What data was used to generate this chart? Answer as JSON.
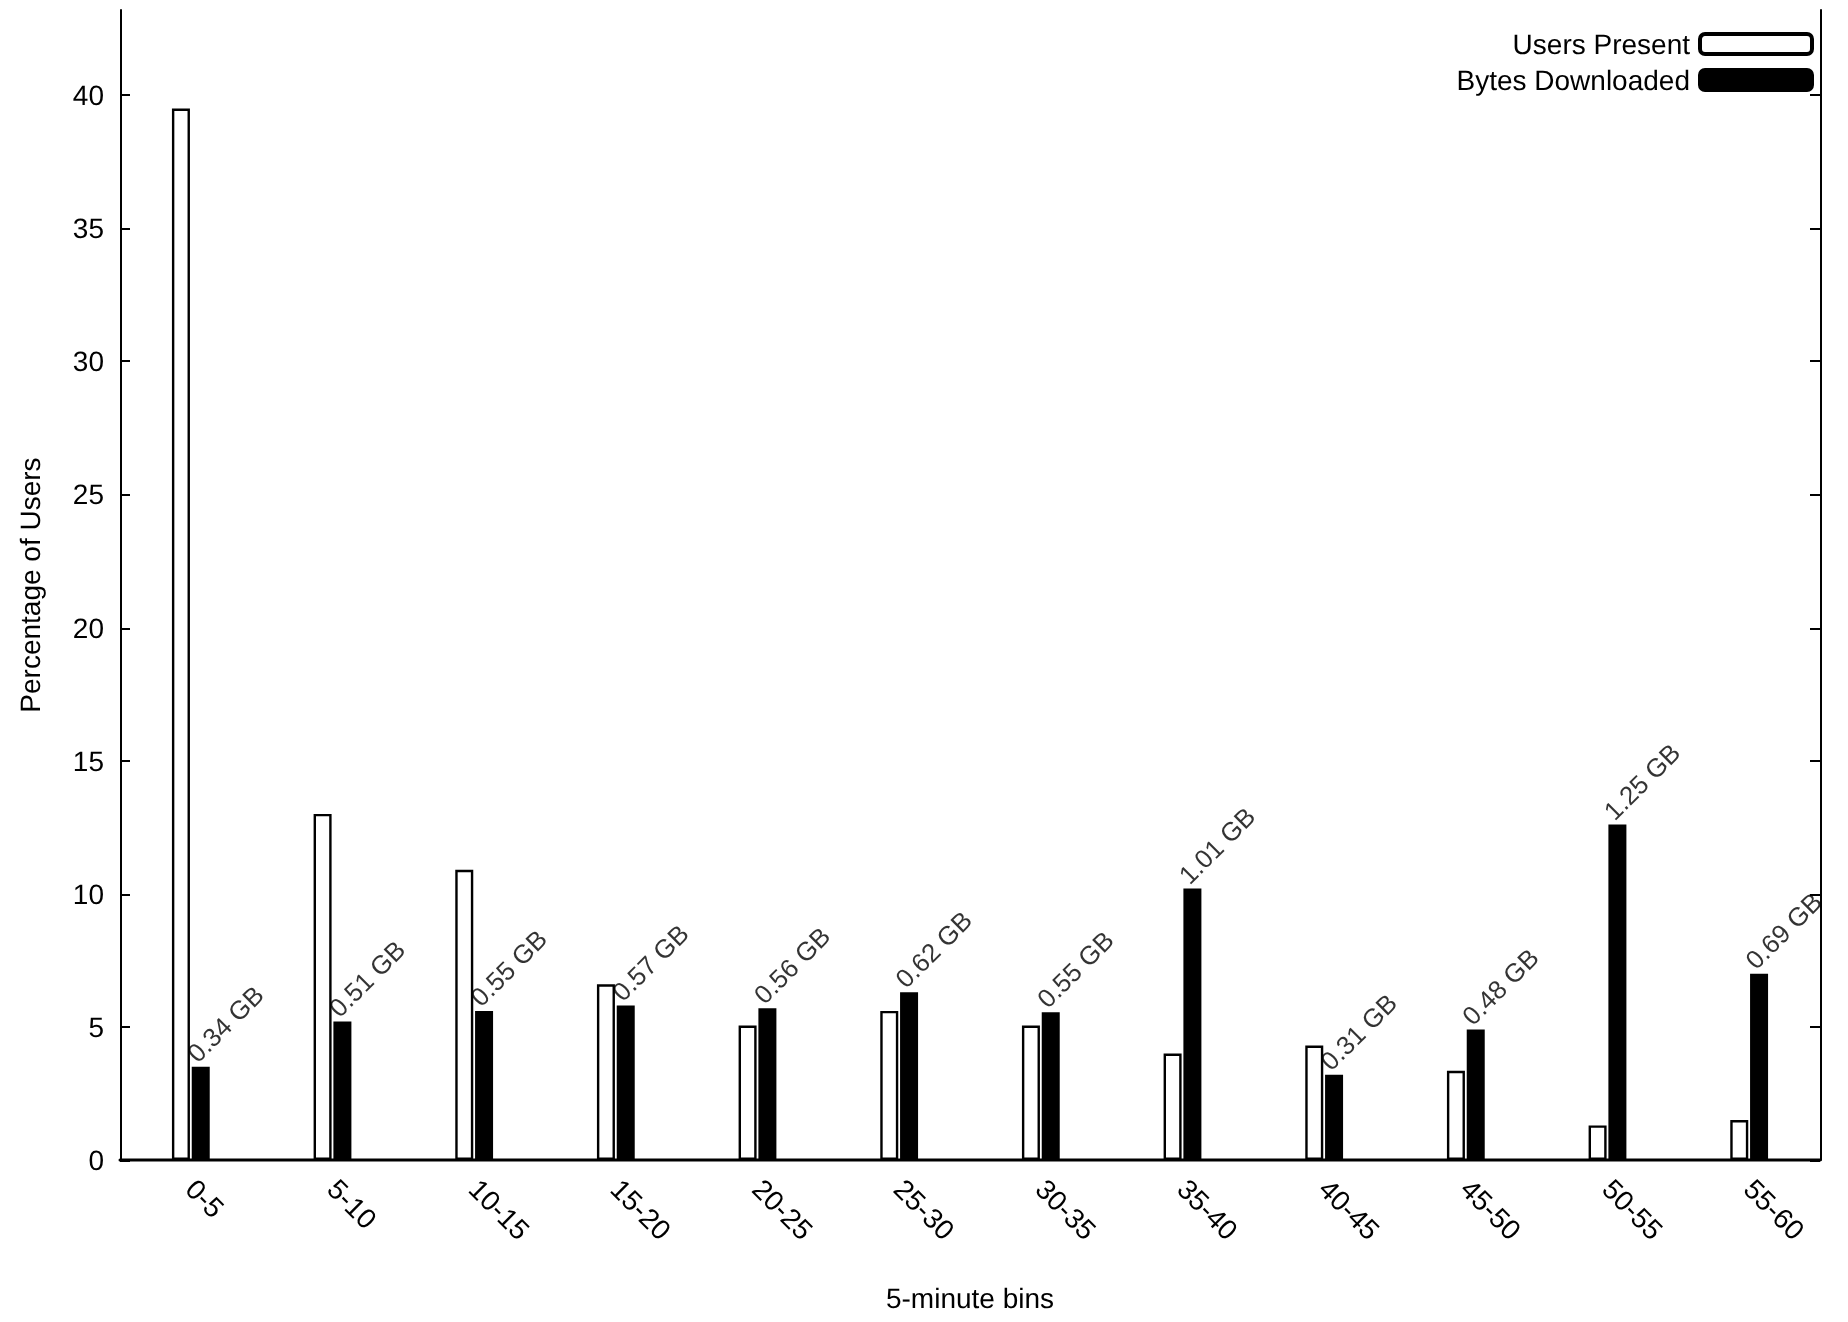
{
  "chart_data": {
    "type": "bar",
    "xlabel": "5-minute bins",
    "ylabel": "Percentage of Users",
    "categories": [
      "0-5",
      "5-10",
      "10-15",
      "15-20",
      "20-25",
      "25-30",
      "30-35",
      "35-40",
      "40-45",
      "45-50",
      "50-55",
      "55-60"
    ],
    "series": [
      {
        "name": "Users Present",
        "color": "#ffffff",
        "values": [
          39.5,
          13,
          10.9,
          6.6,
          5.05,
          5.6,
          5.05,
          4.0,
          4.3,
          3.35,
          1.3,
          1.5
        ]
      },
      {
        "name": "Bytes Downloaded",
        "color": "#000000",
        "values": [
          3.5,
          5.2,
          5.6,
          5.8,
          5.7,
          6.3,
          5.55,
          10.2,
          3.2,
          4.9,
          12.6,
          7.0
        ]
      }
    ],
    "annotations": [
      {
        "text": "0.34 GB",
        "x": "0-5",
        "y": 3.5
      },
      {
        "text": "0.51 GB",
        "x": "5-10",
        "y": 5.2
      },
      {
        "text": "0.55 GB",
        "x": "10-15",
        "y": 5.6
      },
      {
        "text": "0.57 GB",
        "x": "15-20",
        "y": 5.8
      },
      {
        "text": "0.56 GB",
        "x": "20-25",
        "y": 5.7
      },
      {
        "text": "0.62 GB",
        "x": "25-30",
        "y": 6.3
      },
      {
        "text": "0.55 GB",
        "x": "30-35",
        "y": 5.55
      },
      {
        "text": "1.01 GB",
        "x": "35-40",
        "y": 10.2
      },
      {
        "text": "0.31 GB",
        "x": "40-45",
        "y": 3.2
      },
      {
        "text": "0.48 GB",
        "x": "45-50",
        "y": 4.9
      },
      {
        "text": "1.25 GB",
        "x": "50-55",
        "y": 12.6
      },
      {
        "text": "0.69 GB",
        "x": "55-60",
        "y": 7.0
      }
    ],
    "ylim": [
      0,
      43.2
    ],
    "yticks": [
      0,
      5,
      10,
      15,
      20,
      25,
      30,
      35,
      40
    ],
    "grid": false,
    "legend": "top right"
  }
}
